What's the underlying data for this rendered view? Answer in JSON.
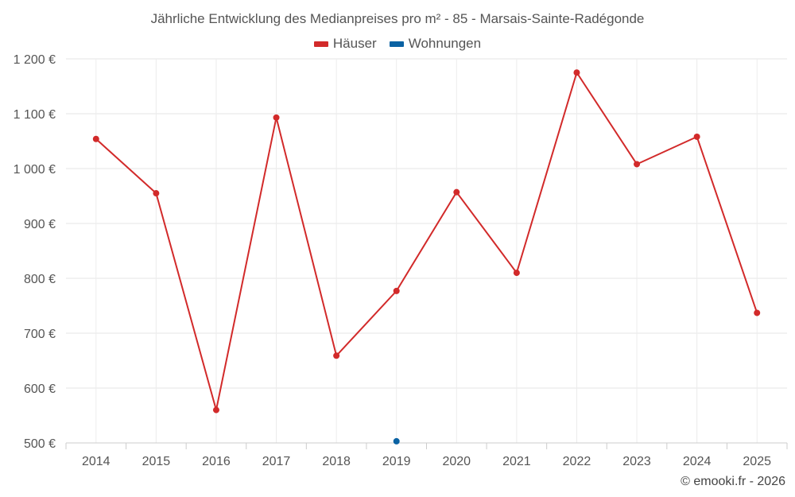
{
  "chart_data": {
    "type": "line",
    "title": "Jährliche Entwicklung des Medianpreises pro m² - 85 - Marsais-Sainte-Radégonde",
    "categories": [
      "2014",
      "2015",
      "2016",
      "2017",
      "2018",
      "2019",
      "2020",
      "2021",
      "2022",
      "2023",
      "2024",
      "2025"
    ],
    "series": [
      {
        "name": "Häuser",
        "color": "#d22a2a",
        "values": [
          1054,
          955,
          560,
          1093,
          659,
          777,
          957,
          810,
          1175,
          1008,
          1058,
          737
        ]
      },
      {
        "name": "Wohnungen",
        "color": "#0a62a3",
        "values": [
          null,
          null,
          null,
          null,
          null,
          503,
          null,
          null,
          null,
          null,
          null,
          null
        ]
      }
    ],
    "ylim": [
      500,
      1200
    ],
    "yticks": [
      500,
      600,
      700,
      800,
      900,
      1000,
      1100,
      1200
    ],
    "ytick_labels": [
      "500 €",
      "600 €",
      "700 €",
      "800 €",
      "900 €",
      "1 000 €",
      "1 100 €",
      "1 200 €"
    ],
    "xlabel": "",
    "ylabel": "",
    "grid": true,
    "legend_position": "top-center"
  },
  "credit": "© emooki.fr - 2026"
}
